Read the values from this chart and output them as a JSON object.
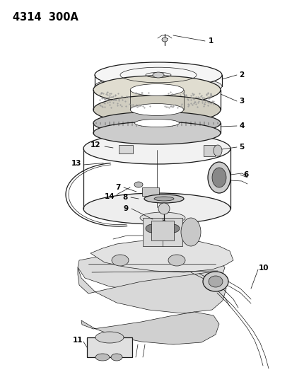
{
  "title": "4314  300A",
  "background_color": "#ffffff",
  "line_color": "#1a1a1a",
  "label_color": "#000000",
  "figsize": [
    4.14,
    5.33
  ],
  "dpi": 100,
  "title_fontsize": 10.5,
  "label_fontsize": 7.5,
  "lw_thin": 0.5,
  "lw_med": 0.9,
  "lw_thick": 1.4
}
